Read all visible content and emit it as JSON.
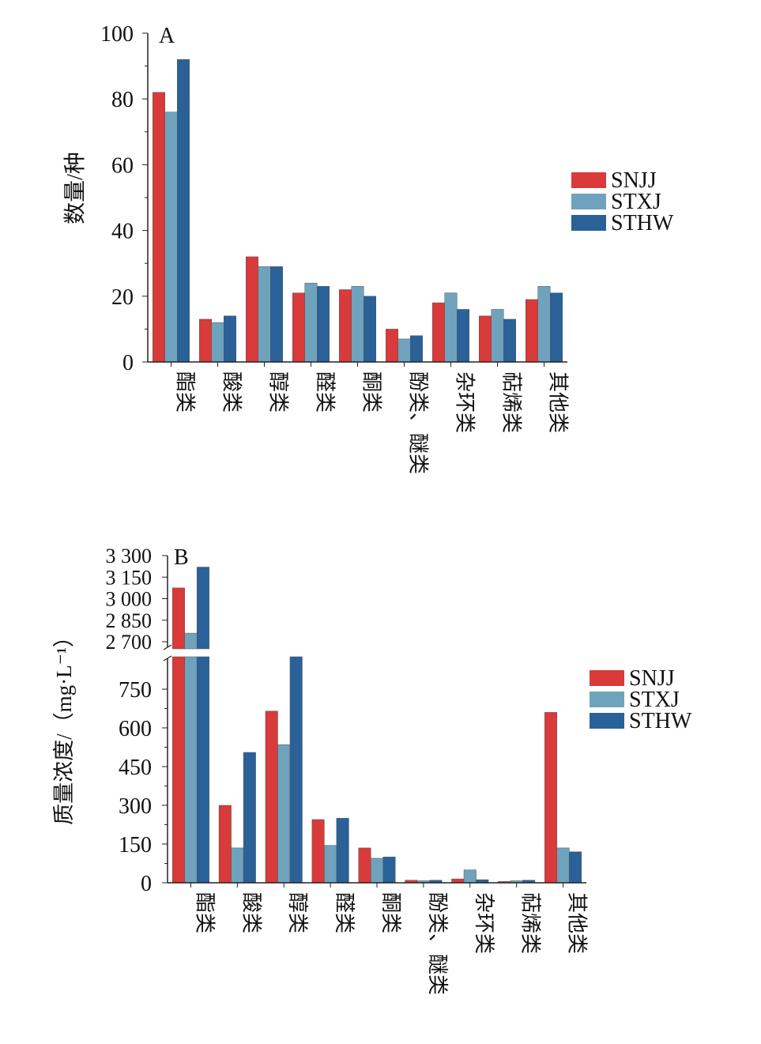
{
  "colors": {
    "SNJJ": "#d93a3a",
    "STXJ": "#6fa3bd",
    "STHW": "#2a6198"
  },
  "chart_data": [
    {
      "type": "bar",
      "panel_label": "A",
      "ylabel": "数量/种",
      "xlabel": "",
      "ylim": [
        0,
        100
      ],
      "yticks": [
        0,
        20,
        40,
        60,
        80,
        100
      ],
      "categories": [
        "酯类",
        "酸类",
        "醇类",
        "醛类",
        "酮类",
        "酚类、醚类",
        "杂环类",
        "萜烯类",
        "其他类"
      ],
      "series": [
        {
          "name": "SNJJ",
          "values": [
            82,
            13,
            32,
            21,
            22,
            10,
            18,
            14,
            19
          ]
        },
        {
          "name": "STXJ",
          "values": [
            76,
            12,
            29,
            24,
            23,
            7,
            21,
            16,
            23
          ]
        },
        {
          "name": "STHW",
          "values": [
            92,
            14,
            29,
            23,
            20,
            8,
            16,
            13,
            21
          ]
        }
      ],
      "legend": "right"
    },
    {
      "type": "bar",
      "panel_label": "B",
      "ylabel": "质量浓度/（mg·L⁻¹）",
      "xlabel": "",
      "axis_break": true,
      "ylim_lower": [
        0,
        800
      ],
      "ylim_upper": [
        2700,
        3300
      ],
      "yticks_lower": [
        0,
        150,
        300,
        450,
        600,
        750
      ],
      "yticks_upper": [
        2700,
        2850,
        3000,
        3150,
        3300
      ],
      "ytick_labels_lower": [
        "0",
        "150",
        "300",
        "450",
        "600",
        "750"
      ],
      "ytick_labels_upper": [
        "2 700",
        "2 850",
        "3 000",
        "3 150",
        "3 300"
      ],
      "categories": [
        "酯类",
        "酸类",
        "醇类",
        "醛类",
        "酮类",
        "酚类、醚类",
        "杂环类",
        "萜烯类",
        "其他类"
      ],
      "series": [
        {
          "name": "SNJJ",
          "values": [
            3075,
            300,
            665,
            245,
            135,
            10,
            15,
            5,
            660
          ]
        },
        {
          "name": "STXJ",
          "values": [
            2760,
            135,
            535,
            145,
            95,
            8,
            50,
            8,
            135
          ]
        },
        {
          "name": "STHW",
          "values": [
            3220,
            505,
            830,
            250,
            100,
            10,
            12,
            10,
            120
          ]
        }
      ],
      "legend": "right"
    }
  ]
}
